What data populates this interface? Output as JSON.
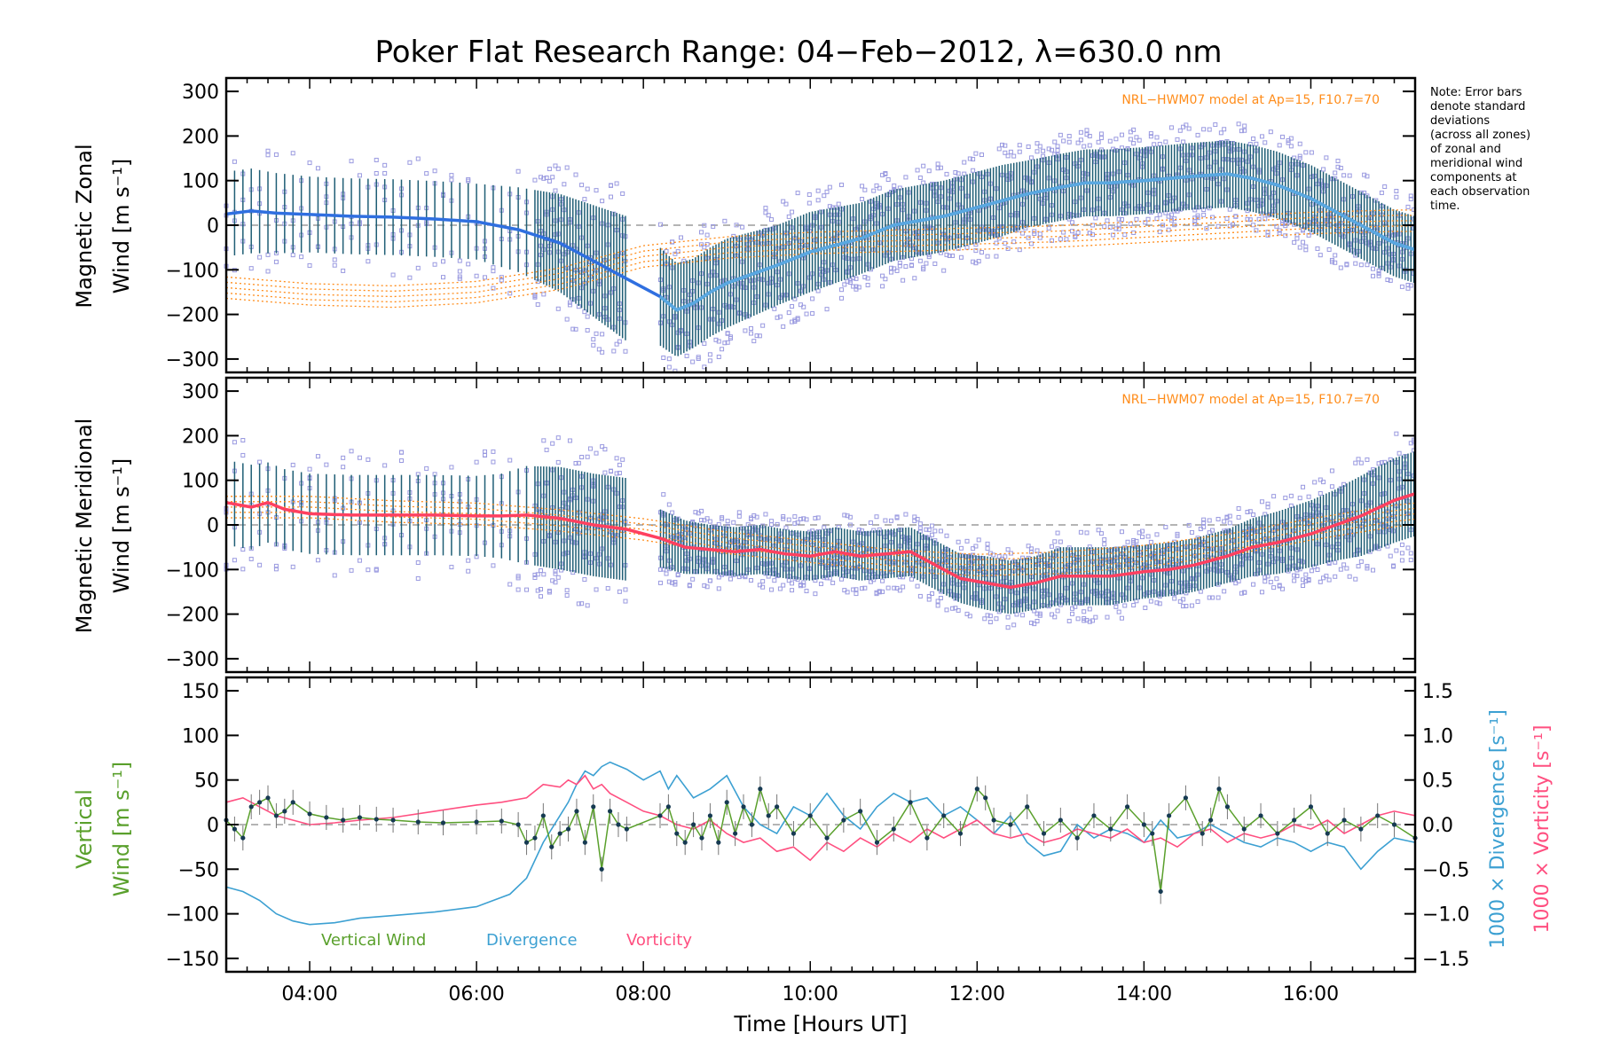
{
  "title": "Poker Flat Research Range: 04−Feb−2012, λ=630.0 nm",
  "note": [
    "Note: Error bars",
    "denote standard",
    "deviations",
    "(across all zones)",
    "of zonal and",
    "meridional wind",
    "components at",
    "each observation",
    "time."
  ],
  "colors": {
    "zonal_mean": "#2f6fe0",
    "zonal_mean_light": "#5aa8e0",
    "meridional_mean": "#ff4060",
    "model": "#ff8c1a",
    "errorbar": "#1f5e75",
    "scatter": "#9a9ae0",
    "vertical": "#5aa02c",
    "divergence": "#3ca0d2",
    "vorticity": "#ff4f80",
    "vertical_points": "#163a52"
  },
  "chart_data": [
    {
      "type": "line",
      "panel": "zonal",
      "ylabel_line1": "Magnetic Zonal",
      "ylabel_line2": "Wind [m s⁻¹]",
      "ylim": [
        -330,
        330
      ],
      "yticks": [
        300,
        200,
        100,
        0,
        -100,
        -200,
        -300
      ],
      "ytick_labels": [
        "300",
        "200",
        "100",
        "0",
        "−100",
        "−200",
        "−300"
      ],
      "xlim": [
        3.0,
        17.25
      ],
      "model_label": "NRL−HWM07 model at Ap=15, F10.7=70",
      "zero_line": true,
      "gap": [
        7.8,
        8.2
      ],
      "series": [
        {
          "role": "mean",
          "x": [
            3.0,
            3.3,
            3.6,
            4.0,
            4.5,
            5.0,
            5.5,
            6.0,
            6.5,
            7.0,
            7.4,
            7.8,
            8.2,
            8.4,
            8.6,
            8.8,
            9.0,
            9.3,
            9.6,
            10.0,
            10.3,
            10.6,
            11.0,
            11.3,
            11.6,
            12.0,
            12.3,
            12.6,
            13.0,
            13.3,
            13.6,
            14.0,
            14.3,
            14.6,
            15.0,
            15.3,
            15.6,
            16.0,
            16.3,
            16.6,
            17.0,
            17.25
          ],
          "y": [
            25,
            32,
            27,
            24,
            20,
            18,
            14,
            8,
            -10,
            -40,
            -80,
            -120,
            -160,
            -190,
            -175,
            -150,
            -130,
            -110,
            -90,
            -60,
            -45,
            -30,
            0,
            10,
            20,
            40,
            55,
            70,
            85,
            95,
            95,
            100,
            105,
            110,
            115,
            105,
            90,
            60,
            30,
            0,
            -40,
            -55
          ]
        },
        {
          "role": "std",
          "y": [
            95,
            95,
            90,
            85,
            85,
            85,
            85,
            85,
            95,
            110,
            125,
            140,
            110,
            105,
            100,
            100,
            100,
            95,
            90,
            90,
            85,
            80,
            80,
            80,
            80,
            80,
            80,
            75,
            75,
            75,
            75,
            75,
            75,
            75,
            75,
            75,
            75,
            75,
            75,
            75,
            75,
            75
          ]
        },
        {
          "role": "model",
          "x": [
            3.0,
            4.0,
            5.0,
            6.0,
            7.0,
            8.0,
            9.0,
            10.0,
            11.0,
            12.0,
            13.0,
            14.0,
            15.0,
            16.0,
            17.0,
            17.25
          ],
          "y": [
            -140,
            -155,
            -160,
            -150,
            -120,
            -70,
            -50,
            -40,
            -35,
            -30,
            -25,
            -15,
            -5,
            5,
            10,
            10
          ]
        }
      ]
    },
    {
      "type": "line",
      "panel": "meridional",
      "ylabel_line1": "Magnetic Meridional",
      "ylabel_line2": "Wind [m s⁻¹]",
      "ylim": [
        -330,
        330
      ],
      "yticks": [
        300,
        200,
        100,
        0,
        -100,
        -200,
        -300
      ],
      "ytick_labels": [
        "300",
        "200",
        "100",
        "0",
        "−100",
        "−200",
        "−300"
      ],
      "xlim": [
        3.0,
        17.25
      ],
      "model_label": "NRL−HWM07 model at Ap=15, F10.7=70",
      "zero_line": true,
      "gap": [
        7.8,
        8.2
      ],
      "series": [
        {
          "role": "mean",
          "x": [
            3.0,
            3.3,
            3.5,
            3.7,
            4.0,
            4.5,
            5.0,
            5.5,
            6.0,
            6.3,
            6.6,
            7.0,
            7.4,
            7.8,
            8.2,
            8.5,
            8.8,
            9.1,
            9.4,
            9.7,
            10.0,
            10.3,
            10.6,
            10.9,
            11.2,
            11.5,
            11.8,
            12.1,
            12.4,
            12.7,
            13.0,
            13.3,
            13.6,
            14.0,
            14.3,
            14.6,
            15.0,
            15.3,
            15.6,
            16.0,
            16.3,
            16.6,
            17.0,
            17.25
          ],
          "y": [
            50,
            40,
            50,
            35,
            25,
            22,
            22,
            22,
            20,
            20,
            22,
            15,
            0,
            -10,
            -30,
            -50,
            -55,
            -60,
            -55,
            -65,
            -70,
            -60,
            -70,
            -65,
            -60,
            -90,
            -120,
            -130,
            -140,
            -130,
            -115,
            -115,
            -115,
            -105,
            -100,
            -90,
            -70,
            -50,
            -40,
            -20,
            0,
            20,
            55,
            70
          ]
        },
        {
          "role": "std",
          "y": [
            95,
            95,
            90,
            90,
            90,
            90,
            90,
            90,
            90,
            95,
            110,
            115,
            115,
            115,
            65,
            60,
            55,
            55,
            55,
            55,
            55,
            55,
            55,
            55,
            55,
            55,
            55,
            60,
            60,
            60,
            65,
            65,
            65,
            60,
            60,
            60,
            60,
            65,
            70,
            75,
            80,
            90,
            95,
            95
          ]
        },
        {
          "role": "model",
          "x": [
            3.0,
            4.0,
            5.0,
            6.0,
            7.0,
            8.0,
            9.0,
            10.0,
            11.0,
            12.0,
            13.0,
            14.0,
            15.0,
            16.0,
            17.0,
            17.25
          ],
          "y": [
            40,
            40,
            30,
            25,
            10,
            -10,
            -40,
            -60,
            -80,
            -90,
            -85,
            -70,
            -45,
            -10,
            20,
            25
          ]
        }
      ]
    },
    {
      "type": "line",
      "panel": "vertical",
      "ylabel_line1": "Vertical",
      "ylabel_line2": "Wind [m s⁻¹]",
      "ylabel_right1": "1000 × Divergence [s⁻¹]",
      "ylabel_right2": "1000 × Vorticity [s⁻¹]",
      "ylim": [
        -165,
        165
      ],
      "yticks": [
        150,
        100,
        50,
        0,
        -50,
        -100,
        -150
      ],
      "ytick_labels": [
        "150",
        "100",
        "50",
        "0",
        "−50",
        "−100",
        "−150"
      ],
      "ylim_right": [
        -1.65,
        1.65
      ],
      "yticks_right": [
        1.5,
        1.0,
        0.5,
        0.0,
        -0.5,
        -1.0,
        -1.5
      ],
      "ytick_labels_right": [
        "1.5",
        "1.0",
        "0.5",
        "0.0",
        "−0.5",
        "−1.0",
        "−1.5"
      ],
      "xlim": [
        3.0,
        17.25
      ],
      "xticks": [
        4,
        6,
        8,
        10,
        12,
        14,
        16
      ],
      "xtick_labels": [
        "04:00",
        "06:00",
        "08:00",
        "10:00",
        "12:00",
        "14:00",
        "16:00"
      ],
      "xlabel": "Time [Hours UT]",
      "zero_line": true,
      "legend": [
        "Vertical Wind",
        "Divergence",
        "Vorticity"
      ],
      "series": [
        {
          "name": "Vertical Wind",
          "axis": "left",
          "x": [
            3.0,
            3.1,
            3.2,
            3.3,
            3.4,
            3.5,
            3.6,
            3.7,
            3.8,
            4.0,
            4.2,
            4.4,
            4.6,
            4.8,
            5.0,
            5.3,
            5.6,
            6.0,
            6.3,
            6.5,
            6.6,
            6.7,
            6.8,
            6.9,
            7.0,
            7.1,
            7.2,
            7.3,
            7.4,
            7.5,
            7.6,
            7.7,
            7.8,
            8.2,
            8.3,
            8.4,
            8.5,
            8.6,
            8.7,
            8.8,
            8.9,
            9.0,
            9.1,
            9.2,
            9.3,
            9.4,
            9.5,
            9.6,
            9.8,
            10.0,
            10.2,
            10.4,
            10.6,
            10.8,
            11.0,
            11.2,
            11.4,
            11.6,
            11.8,
            12.0,
            12.1,
            12.2,
            12.4,
            12.6,
            12.8,
            13.0,
            13.2,
            13.4,
            13.6,
            13.8,
            14.0,
            14.1,
            14.2,
            14.3,
            14.5,
            14.7,
            14.8,
            14.9,
            15.0,
            15.2,
            15.4,
            15.6,
            15.8,
            16.0,
            16.2,
            16.4,
            16.6,
            16.8,
            17.0,
            17.25
          ],
          "y": [
            5,
            -5,
            -15,
            20,
            25,
            30,
            10,
            15,
            25,
            12,
            8,
            5,
            8,
            6,
            5,
            3,
            2,
            3,
            4,
            0,
            -20,
            -15,
            10,
            -25,
            -10,
            -5,
            15,
            -20,
            20,
            -50,
            15,
            0,
            -5,
            10,
            20,
            -10,
            -20,
            0,
            -15,
            10,
            -20,
            25,
            -10,
            20,
            0,
            40,
            10,
            20,
            -10,
            10,
            -15,
            5,
            15,
            -20,
            -5,
            25,
            -15,
            10,
            -10,
            40,
            30,
            5,
            0,
            20,
            -10,
            5,
            -15,
            10,
            -5,
            20,
            0,
            -10,
            -75,
            10,
            30,
            -10,
            5,
            40,
            20,
            -5,
            10,
            -10,
            5,
            20,
            -10,
            5,
            -5,
            10,
            0,
            -15
          ]
        },
        {
          "name": "Divergence",
          "axis": "right",
          "x": [
            3.0,
            3.2,
            3.4,
            3.6,
            3.8,
            4.0,
            4.3,
            4.6,
            5.0,
            5.5,
            6.0,
            6.4,
            6.6,
            6.8,
            7.0,
            7.1,
            7.2,
            7.3,
            7.4,
            7.5,
            7.6,
            7.8,
            8.0,
            8.2,
            8.3,
            8.4,
            8.6,
            8.8,
            9.0,
            9.2,
            9.4,
            9.6,
            9.8,
            10.0,
            10.2,
            10.4,
            10.6,
            10.8,
            11.0,
            11.2,
            11.4,
            11.6,
            11.8,
            12.0,
            12.2,
            12.4,
            12.6,
            12.8,
            13.0,
            13.2,
            13.4,
            13.6,
            13.8,
            14.0,
            14.2,
            14.4,
            14.6,
            14.8,
            15.0,
            15.2,
            15.4,
            15.6,
            15.8,
            16.0,
            16.2,
            16.4,
            16.6,
            16.8,
            17.0,
            17.25
          ],
          "y": [
            -0.7,
            -0.75,
            -0.85,
            -1.0,
            -1.08,
            -1.12,
            -1.1,
            -1.05,
            -1.02,
            -0.98,
            -0.92,
            -0.78,
            -0.6,
            -0.2,
            0.1,
            0.25,
            0.45,
            0.6,
            0.55,
            0.65,
            0.7,
            0.62,
            0.5,
            0.6,
            0.4,
            0.55,
            0.3,
            0.4,
            0.55,
            0.2,
            0.0,
            -0.1,
            0.2,
            0.1,
            0.35,
            0.1,
            -0.05,
            0.2,
            0.35,
            0.25,
            0.3,
            0.1,
            0.2,
            0.05,
            -0.1,
            0.1,
            -0.2,
            -0.35,
            -0.3,
            0.0,
            -0.15,
            -0.05,
            -0.1,
            -0.2,
            0.05,
            -0.15,
            -0.1,
            0.0,
            -0.1,
            -0.2,
            -0.25,
            -0.15,
            -0.2,
            -0.3,
            -0.2,
            -0.25,
            -0.5,
            -0.3,
            -0.15,
            -0.2
          ]
        },
        {
          "name": "Vorticity",
          "axis": "right",
          "x": [
            3.0,
            3.2,
            3.4,
            3.6,
            3.8,
            4.0,
            4.3,
            4.6,
            5.0,
            5.5,
            6.0,
            6.3,
            6.6,
            6.8,
            7.0,
            7.1,
            7.2,
            7.3,
            7.4,
            7.5,
            7.6,
            7.8,
            8.0,
            8.2,
            8.4,
            8.6,
            8.8,
            9.0,
            9.2,
            9.4,
            9.6,
            9.8,
            10.0,
            10.2,
            10.4,
            10.6,
            10.8,
            11.0,
            11.2,
            11.4,
            11.6,
            11.8,
            12.0,
            12.2,
            12.4,
            12.6,
            12.8,
            13.0,
            13.2,
            13.4,
            13.6,
            13.8,
            14.0,
            14.2,
            14.4,
            14.6,
            14.8,
            15.0,
            15.2,
            15.4,
            15.6,
            15.8,
            16.0,
            16.2,
            16.4,
            16.6,
            16.8,
            17.0,
            17.25
          ],
          "y": [
            0.25,
            0.3,
            0.2,
            0.1,
            0.05,
            0.0,
            0.02,
            0.05,
            0.08,
            0.15,
            0.22,
            0.25,
            0.3,
            0.45,
            0.42,
            0.5,
            0.45,
            0.55,
            0.4,
            0.45,
            0.35,
            0.25,
            0.15,
            0.1,
            0.0,
            -0.05,
            0.05,
            -0.1,
            -0.2,
            -0.15,
            -0.3,
            -0.25,
            -0.4,
            -0.2,
            -0.3,
            -0.15,
            -0.25,
            -0.1,
            -0.2,
            -0.05,
            -0.15,
            -0.05,
            0.05,
            -0.1,
            -0.15,
            -0.1,
            -0.2,
            -0.15,
            -0.05,
            -0.1,
            -0.15,
            -0.05,
            -0.2,
            -0.15,
            -0.25,
            -0.1,
            -0.05,
            -0.2,
            -0.1,
            -0.15,
            -0.1,
            0.0,
            -0.05,
            0.05,
            -0.1,
            0.0,
            0.1,
            0.15,
            0.1
          ]
        }
      ]
    }
  ]
}
